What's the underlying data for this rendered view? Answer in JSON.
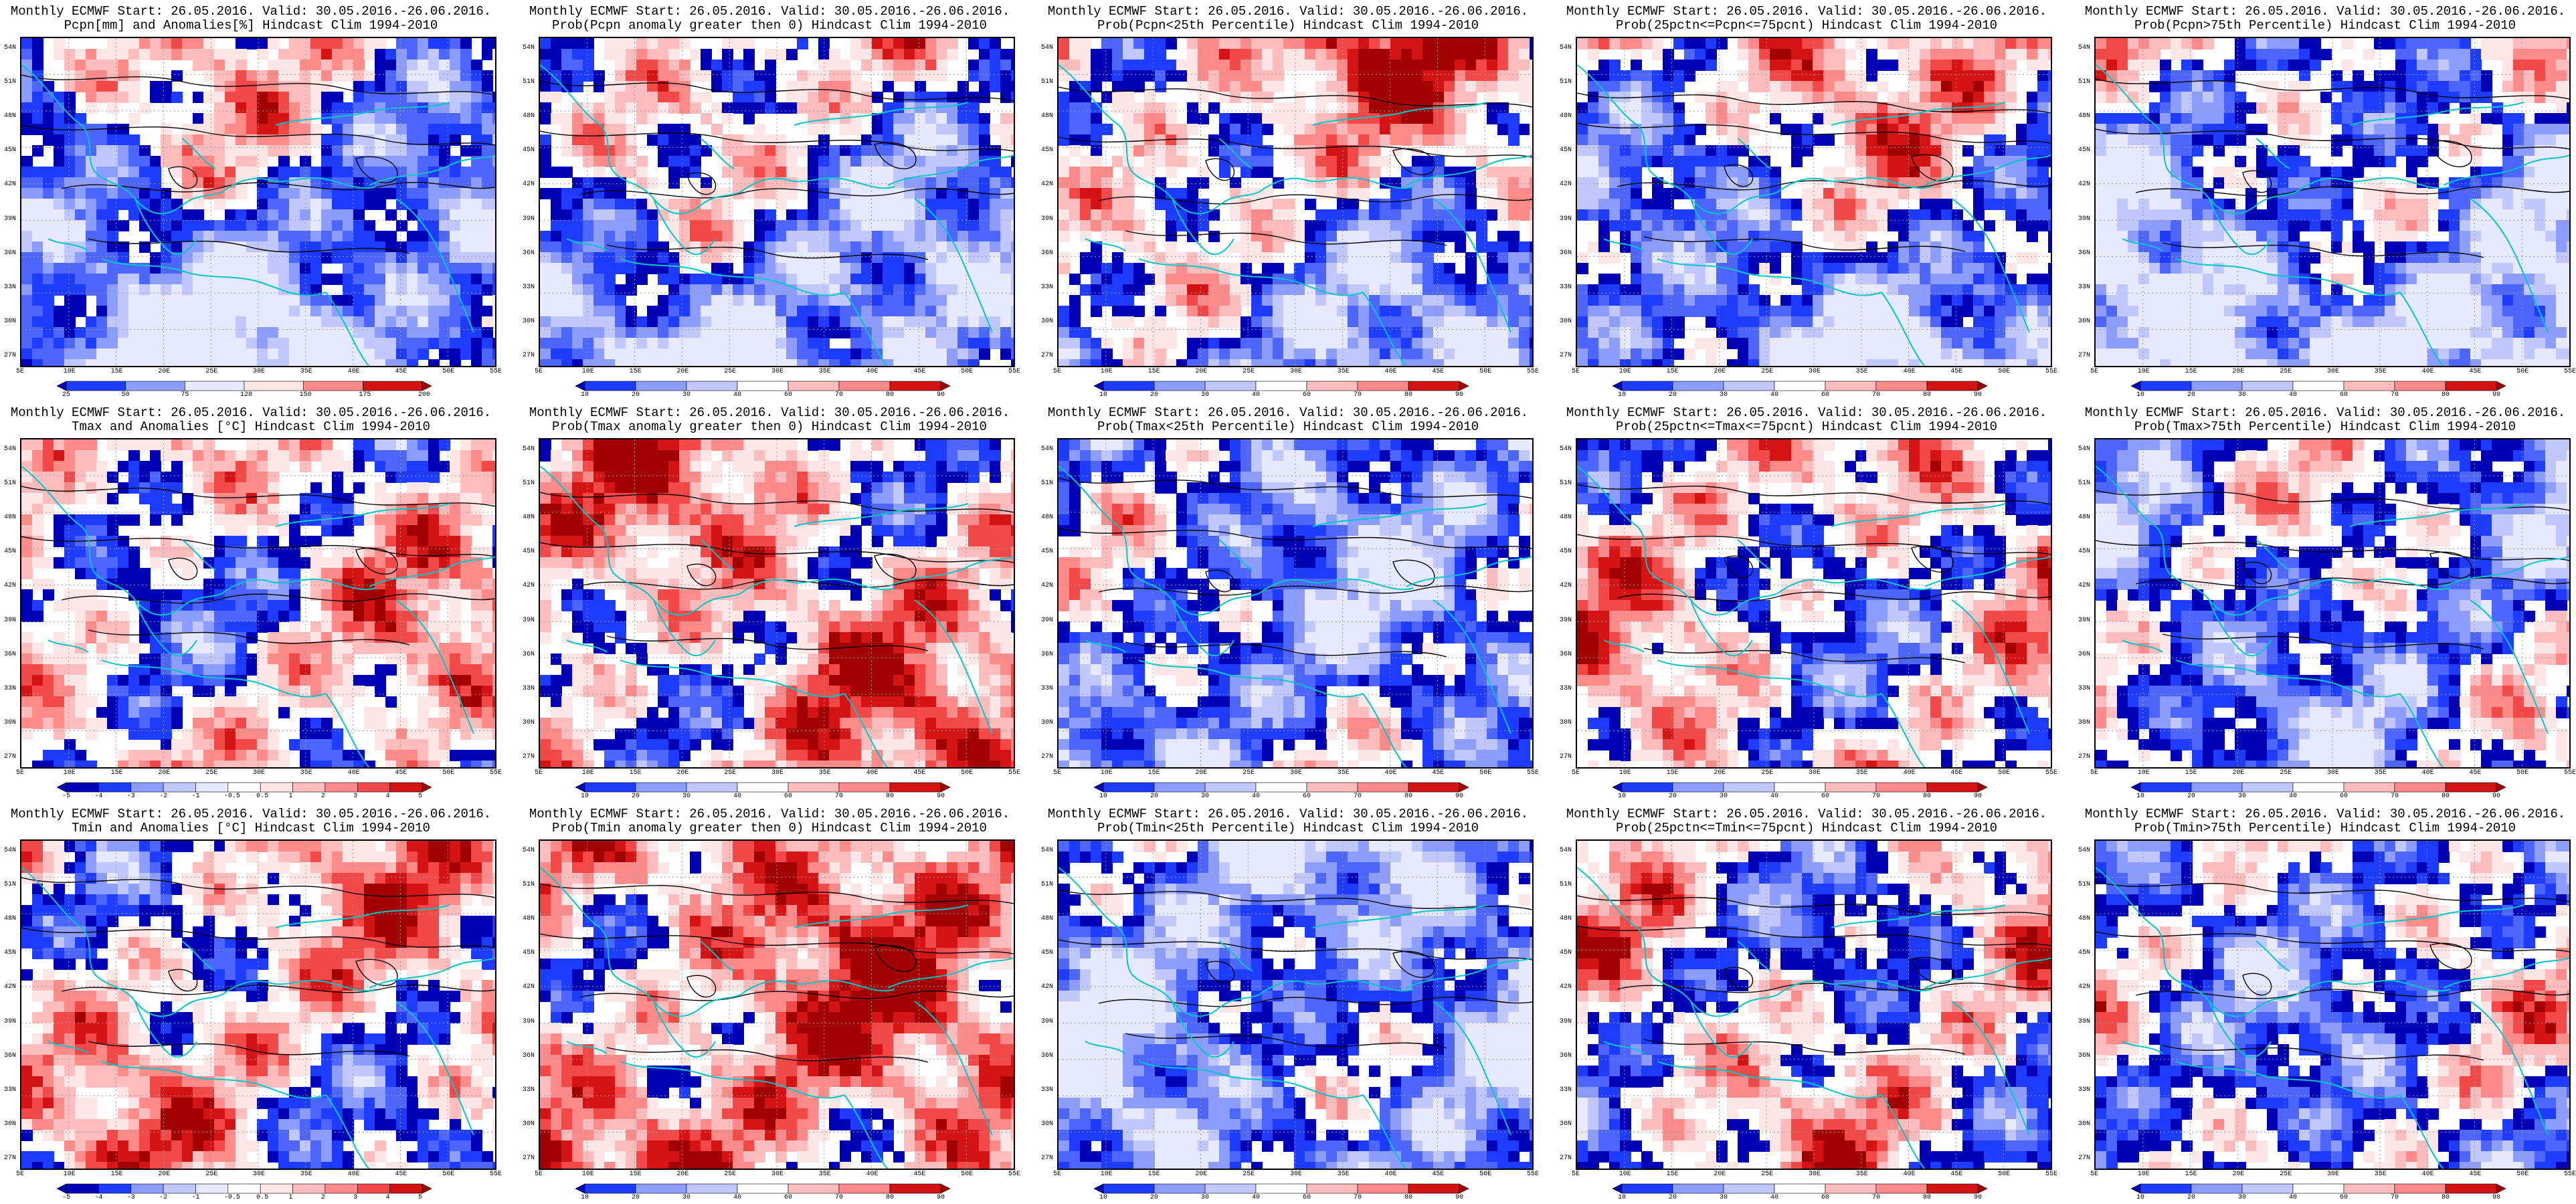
{
  "header": {
    "model_line": "Monthly ECMWF Start: 26.05.2016. Valid: 30.05.2016.-26.06.2016.",
    "clim": "Hindcast Clim 1994-2010"
  },
  "lat_labels": [
    "54N",
    "51N",
    "48N",
    "45N",
    "42N",
    "39N",
    "36N",
    "33N",
    "30N",
    "27N"
  ],
  "lon_labels": [
    "5E",
    "10E",
    "15E",
    "20E",
    "25E",
    "30E",
    "35E",
    "40E",
    "45E",
    "50E",
    "55E"
  ],
  "colors": {
    "blue": [
      "#0000b4",
      "#1e3cff",
      "#4c66ff",
      "#8c9cff",
      "#c0c8ff",
      "#e6e9ff"
    ],
    "red": [
      "#ffe6e6",
      "#ffbcbc",
      "#ff8a8a",
      "#f24848",
      "#d41414",
      "#a00000"
    ],
    "land_line": "#00c8c8",
    "contour": "#000000"
  },
  "rows": [
    {
      "variable": "Pcpn",
      "panels": [
        {
          "subtitle": "Pcpn[mm] and Anomalies[%] Hindcast Clim 1994-2010",
          "scale": "anom_pcpn",
          "bias": -0.4
        },
        {
          "subtitle": "Prob(Pcpn anomaly greater then 0) Hindcast Clim 1994-2010",
          "scale": "prob",
          "bias": -0.3
        },
        {
          "subtitle": "Prob(Pcpn<25th Percentile) Hindcast Clim 1994-2010",
          "scale": "prob",
          "bias": 0.0
        },
        {
          "subtitle": "Prob(25pctn<=Pcpn<=75pcnt) Hindcast Clim 1994-2010",
          "scale": "prob",
          "bias": -0.2
        },
        {
          "subtitle": "Prob(Pcpn>75th Percentile) Hindcast Clim 1994-2010",
          "scale": "prob",
          "bias": -0.5
        }
      ]
    },
    {
      "variable": "Tmax",
      "panels": [
        {
          "subtitle": "Tmax and Anomalies [°C] Hindcast Clim 1994-2010",
          "scale": "anom_t",
          "bias": 0.1
        },
        {
          "subtitle": "Prob(Tmax anomaly greater then 0) Hindcast Clim 1994-2010",
          "scale": "prob",
          "bias": 0.3
        },
        {
          "subtitle": "Prob(Tmax<25th Percentile) Hindcast Clim 1994-2010",
          "scale": "prob",
          "bias": -0.4
        },
        {
          "subtitle": "Prob(25pctn<=Tmax<=75pcnt) Hindcast Clim 1994-2010",
          "scale": "prob",
          "bias": 0.1
        },
        {
          "subtitle": "Prob(Tmax>75th Percentile) Hindcast Clim 1994-2010",
          "scale": "prob",
          "bias": -0.3
        }
      ]
    },
    {
      "variable": "Tmin",
      "panels": [
        {
          "subtitle": "Tmin and Anomalies [°C] Hindcast Clim 1994-2010",
          "scale": "anom_t",
          "bias": 0.15
        },
        {
          "subtitle": "Prob(Tmin anomaly greater then 0) Hindcast Clim 1994-2010",
          "scale": "prob",
          "bias": 0.45
        },
        {
          "subtitle": "Prob(Tmin<25th Percentile) Hindcast Clim 1994-2010",
          "scale": "prob",
          "bias": -0.6
        },
        {
          "subtitle": "Prob(25pctn<=Tmin<=75pcnt) Hindcast Clim 1994-2010",
          "scale": "prob",
          "bias": 0.05
        },
        {
          "subtitle": "Prob(Tmin>75th Percentile) Hindcast Clim 1994-2010",
          "scale": "prob",
          "bias": -0.2
        }
      ]
    }
  ],
  "colorbar_scales": {
    "prob": [
      "10",
      "20",
      "30",
      "40",
      "60",
      "70",
      "80",
      "90"
    ],
    "anom_pcpn": [
      "25",
      "50",
      "75",
      "120",
      "150",
      "175",
      "200"
    ],
    "anom_t": [
      "-5",
      "-4",
      "-3",
      "-2",
      "-1",
      "-0.5",
      "0.5",
      "1",
      "2",
      "3",
      "4",
      "5"
    ]
  }
}
